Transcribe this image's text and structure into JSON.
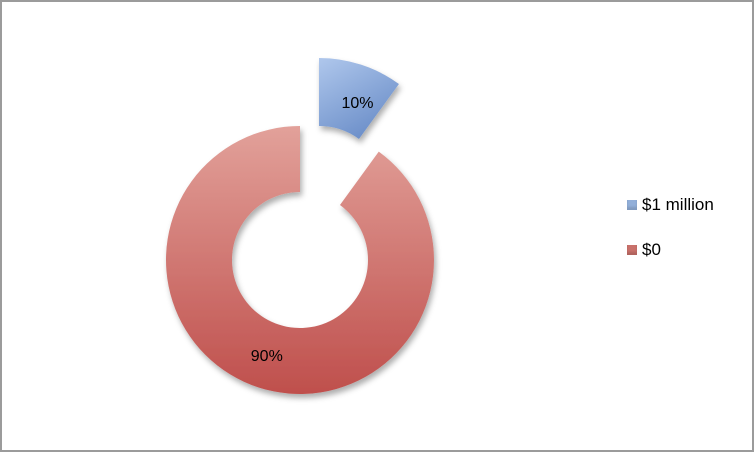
{
  "chart_data": {
    "type": "pie",
    "subtype": "doughnut-exploded",
    "title": "",
    "categories": [
      "$1 million",
      "$0"
    ],
    "values": [
      10,
      90
    ],
    "unit": "percent-of-total",
    "slices": [
      {
        "category": "$1 million",
        "value": 10,
        "label": "10%",
        "color_light": "#AFC7EC",
        "color_dark": "#6C8FC9",
        "exploded": true
      },
      {
        "category": "$0",
        "value": 90,
        "label": "90%",
        "color_light": "#E2A19A",
        "color_dark": "#BF4F4C",
        "exploded": false
      }
    ],
    "start_angle_deg": 0,
    "direction": "clockwise",
    "legend_position": "right",
    "background_color": "#FFFFFF",
    "frame_border_color": "#9B9B9B",
    "label_text_color": "#000000"
  },
  "legend": {
    "items": [
      {
        "label": "$1 million",
        "color": "#92AFD9"
      },
      {
        "label": "$0",
        "color": "#C9716B"
      }
    ]
  }
}
